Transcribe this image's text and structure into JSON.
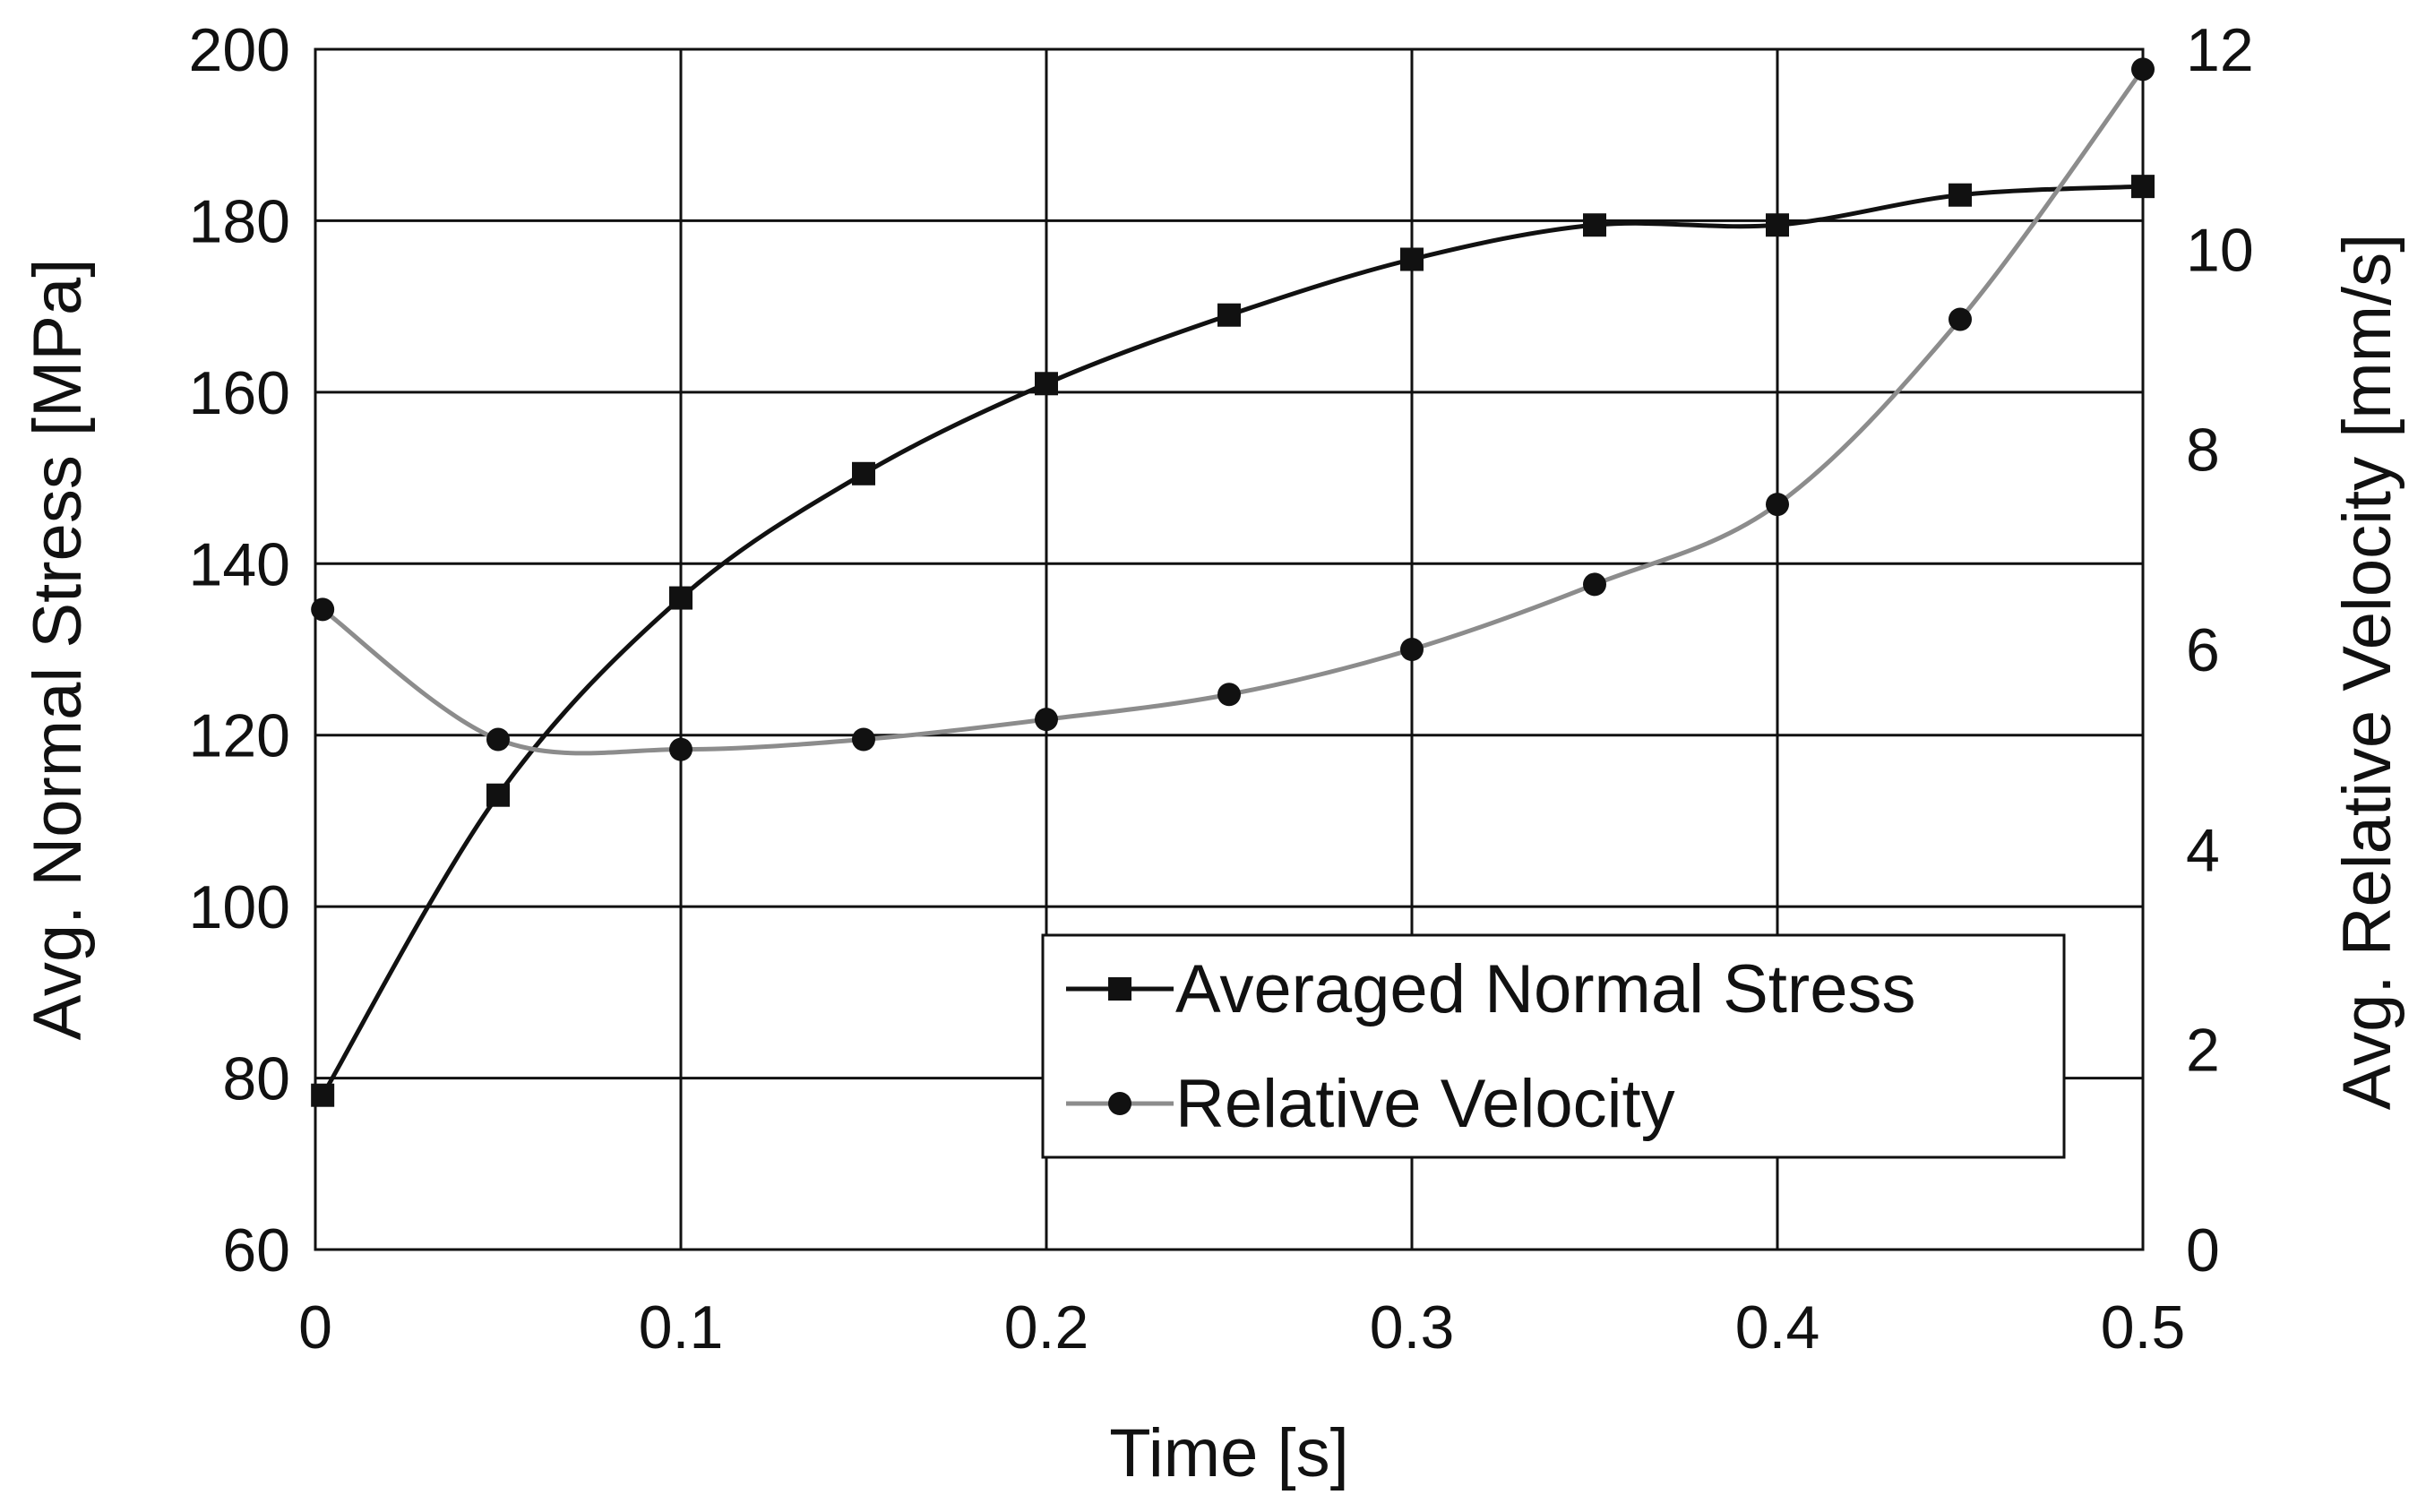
{
  "chart_data": {
    "type": "line",
    "xlabel": "Time [s]",
    "ylabel_left": "Avg. Normal Stress [MPa]",
    "ylabel_right": "Avg. Relative Velocity [mm/s]",
    "xlim": [
      0,
      0.5
    ],
    "ylim_left": [
      60,
      200
    ],
    "ylim_right": [
      0,
      12
    ],
    "x_ticks": [
      "0",
      "0.1",
      "0.2",
      "0.3",
      "0.4",
      "0.5"
    ],
    "y_left_ticks": [
      "60",
      "80",
      "100",
      "120",
      "140",
      "160",
      "180",
      "200"
    ],
    "y_right_ticks": [
      "0",
      "2",
      "4",
      "6",
      "8",
      "10",
      "12"
    ],
    "grid": true,
    "legend_position": "lower-right",
    "series": [
      {
        "name": "Averaged Normal Stress",
        "axis": "left",
        "marker": "square",
        "color": "#111111",
        "x": [
          0.002,
          0.05,
          0.1,
          0.15,
          0.2,
          0.25,
          0.3,
          0.35,
          0.4,
          0.45,
          0.5
        ],
        "y": [
          78,
          113,
          136,
          150.5,
          161,
          169,
          175.5,
          179.5,
          179.5,
          183,
          184
        ]
      },
      {
        "name": "Relative Velocity",
        "axis": "right",
        "marker": "circle",
        "color": "#8c8c8c",
        "x": [
          0.002,
          0.05,
          0.1,
          0.15,
          0.2,
          0.25,
          0.3,
          0.35,
          0.4,
          0.45,
          0.5
        ],
        "y": [
          6.4,
          5.1,
          5.0,
          5.1,
          5.3,
          5.55,
          6.0,
          6.65,
          7.45,
          9.3,
          11.8
        ]
      }
    ]
  }
}
